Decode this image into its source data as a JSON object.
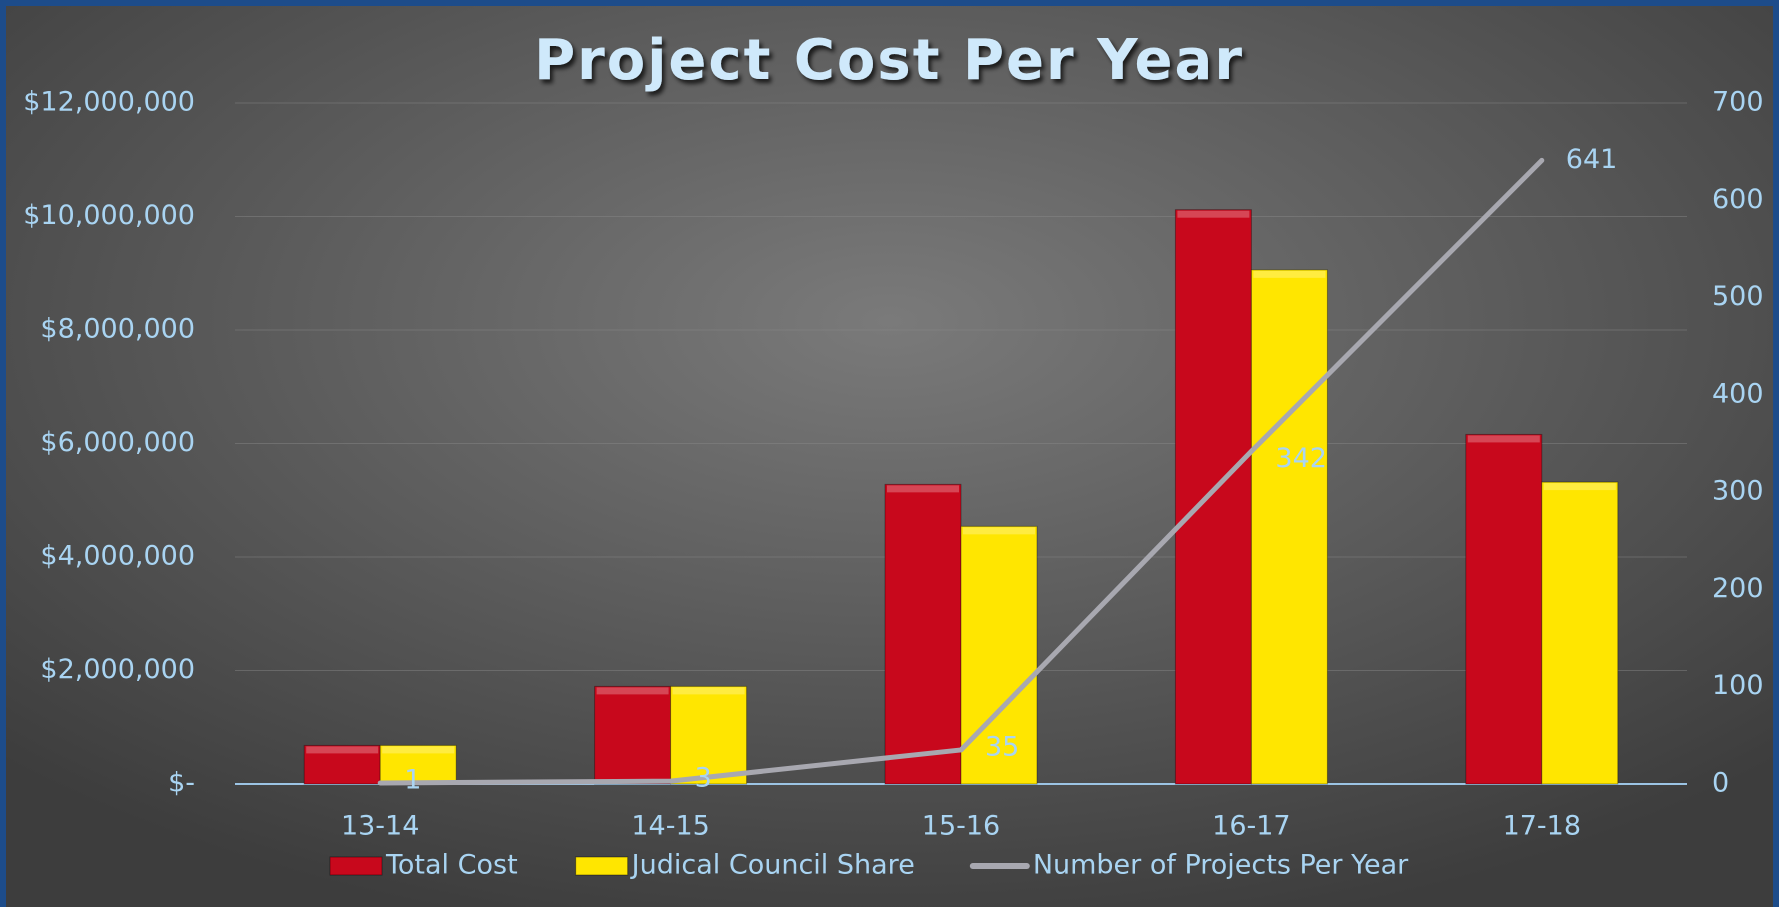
{
  "chart_data": {
    "type": "bar",
    "title": "Project Cost Per Year",
    "categories": [
      "13-14",
      "14-15",
      "15-16",
      "16-17",
      "17-18"
    ],
    "series": [
      {
        "name": "Total Cost",
        "color": "#c8081c",
        "values": [
          680000,
          1720000,
          5280000,
          10120000,
          6160000
        ]
      },
      {
        "name": "Judical Council Share",
        "color": "#ffe600",
        "values": [
          680000,
          1720000,
          4540000,
          9060000,
          5320000
        ]
      },
      {
        "name": "Number of Projects Per Year",
        "color": "#a8a8b0",
        "type": "line",
        "axis": "y2",
        "values": [
          1,
          3,
          35,
          342,
          641
        ]
      }
    ],
    "ylim": [
      0,
      12000000
    ],
    "yticks": [
      {
        "value": 0,
        "label": "$-"
      },
      {
        "value": 2000000,
        "label": "$2,000,000"
      },
      {
        "value": 4000000,
        "label": "$4,000,000"
      },
      {
        "value": 6000000,
        "label": "$6,000,000"
      },
      {
        "value": 8000000,
        "label": "$8,000,000"
      },
      {
        "value": 10000000,
        "label": "$10,000,000"
      },
      {
        "value": 12000000,
        "label": "$12,000,000"
      }
    ],
    "y2lim": [
      0,
      700
    ],
    "y2ticks": [
      0,
      100,
      200,
      300,
      400,
      500,
      600,
      700
    ],
    "grid": true,
    "legend": "bottom"
  }
}
